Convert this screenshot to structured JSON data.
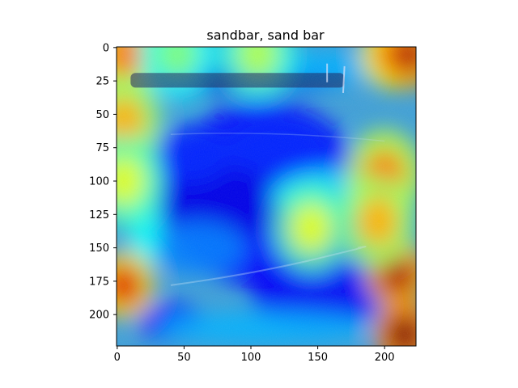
{
  "chart_data": {
    "type": "heatmap",
    "title": "sandbar, sand bar",
    "xlabel": "",
    "ylabel": "",
    "image_size": [
      224,
      224
    ],
    "xlim": [
      -0.5,
      223.5
    ],
    "ylim": [
      223.5,
      -0.5
    ],
    "x_ticks": [
      0,
      50,
      100,
      150,
      200
    ],
    "y_ticks": [
      0,
      25,
      50,
      75,
      100,
      125,
      150,
      175,
      200
    ],
    "grid": false,
    "colormap": "jet",
    "overlay": "activation heatmap over photo",
    "hotspots": [
      {
        "x": 5,
        "y": 5,
        "level": 0.75
      },
      {
        "x": 205,
        "y": 5,
        "level": 0.85
      },
      {
        "x": 218,
        "y": 5,
        "level": 0.95
      },
      {
        "x": 5,
        "y": 55,
        "level": 0.7
      },
      {
        "x": 5,
        "y": 100,
        "level": 0.6
      },
      {
        "x": 5,
        "y": 178,
        "level": 0.9
      },
      {
        "x": 210,
        "y": 170,
        "level": 0.95
      },
      {
        "x": 215,
        "y": 215,
        "level": 1.0
      },
      {
        "x": 200,
        "y": 95,
        "level": 0.75
      },
      {
        "x": 195,
        "y": 130,
        "level": 0.7
      },
      {
        "x": 145,
        "y": 135,
        "level": 0.6
      },
      {
        "x": 105,
        "y": 5,
        "level": 0.55
      },
      {
        "x": 45,
        "y": 5,
        "level": 0.5
      }
    ]
  }
}
